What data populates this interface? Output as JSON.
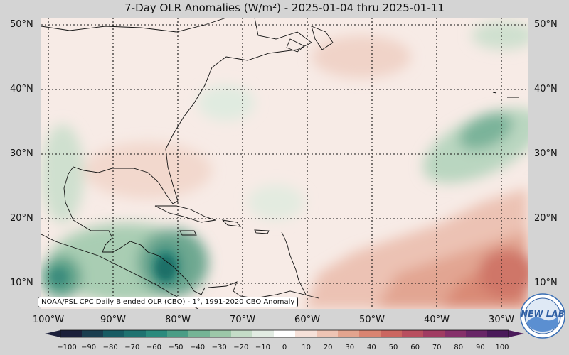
{
  "title": "7-Day OLR Anomalies (W/m²) - 2025-01-04 thru 2025-01-11",
  "credit": "NOAA/PSL CPC Daily Blended OLR (CBO) - 1°, 1991-2020 CBO Anomaly",
  "lat_labels_left": [
    "50°N",
    "40°N",
    "30°N",
    "20°N",
    "10°N"
  ],
  "lat_labels_right": [
    "50°N",
    "40°N",
    "30°N",
    "20°N",
    "10°N"
  ],
  "lon_labels": [
    "100°W",
    "90°W",
    "80°W",
    "70°W",
    "60°W",
    "50°W",
    "40°W",
    "30°W"
  ],
  "colorbar": {
    "ticks": [
      "−100",
      "−90",
      "−80",
      "−70",
      "−60",
      "−50",
      "−40",
      "−30",
      "−20",
      "−10",
      "0",
      "10",
      "20",
      "30",
      "40",
      "50",
      "60",
      "70",
      "80",
      "90",
      "100"
    ],
    "colors": [
      "#1b1f3a",
      "#1a3d4f",
      "#175b63",
      "#1e7270",
      "#2a8a7d",
      "#4a9d86",
      "#75b496",
      "#9cc7a8",
      "#c4dcc7",
      "#e2ece3",
      "#ffffff",
      "#f6e1d9",
      "#eec4b4",
      "#e3a48e",
      "#d98471",
      "#cb6660",
      "#b84f5f",
      "#a03c62",
      "#85306a",
      "#682667",
      "#4a1a5a"
    ]
  },
  "logo_text": "NEW LAB"
}
